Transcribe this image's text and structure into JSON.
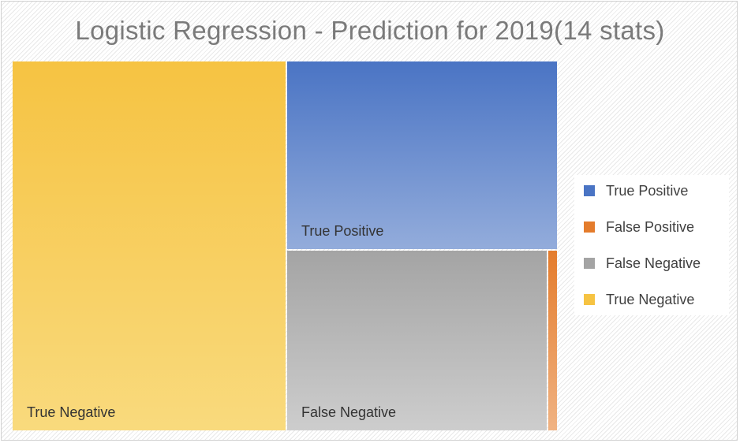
{
  "chart_data": {
    "type": "treemap",
    "title": "Logistic Regression - Prediction for 2019(14 stats)",
    "legend_position": "right",
    "series": [
      {
        "name": "True Negative",
        "value": 230,
        "color": "#f6c342",
        "color_light": "#f9da7d",
        "label": "True Negative"
      },
      {
        "name": "True Positive",
        "value": 116,
        "color": "#4a74c4",
        "color_light": "#93acdb",
        "label": "True Positive"
      },
      {
        "name": "False Negative",
        "value": 107,
        "color": "#a4a4a4",
        "color_light": "#cdcdcd",
        "label": "False Negative"
      },
      {
        "name": "False Positive",
        "value": 4,
        "color": "#e47c2c",
        "color_light": "#f0b383",
        "label": ""
      }
    ],
    "legend": [
      {
        "name": "True Positive",
        "color": "#4a74c4"
      },
      {
        "name": "False Positive",
        "color": "#e47c2c"
      },
      {
        "name": "False Negative",
        "color": "#a4a4a4"
      },
      {
        "name": "True Negative",
        "color": "#f6c342"
      }
    ]
  }
}
